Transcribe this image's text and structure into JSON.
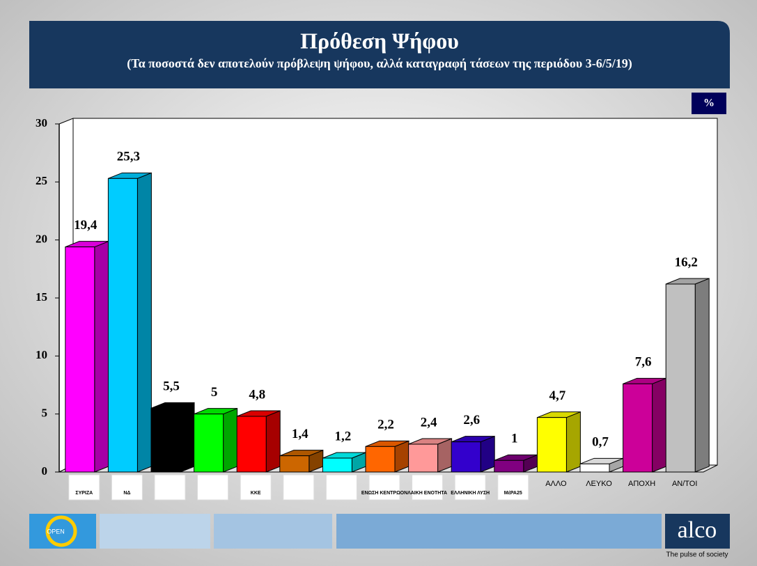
{
  "header": {
    "title": "Πρόθεση Ψήφου",
    "subtitle": "(Τα ποσοστά δεν αποτελούν πρόβλεψη ψήφου, αλλά καταγραφή τάσεων της περιόδου 3-6/5/19)",
    "unit": "%"
  },
  "chart_data": {
    "type": "bar3d",
    "categories": [
      "ΣΥΡΙΖΑ",
      "ΝΔ",
      null,
      null,
      "ΚΚΕ",
      null,
      null,
      "ΕΝΩΣΗ ΚΕΝΤΡΩΟΝ",
      "ΛΑΙΚΗ ΕΝΟΤΗΤΑ",
      "ΕΛΛΗΝΙΚΗ ΛΥΣΗ",
      "ΜέΡΑ25",
      "ΑΛΛΟ",
      "ΛΕΥΚΟ",
      "ΑΠΟΧΗ",
      "ΑΝ/ΤΟΙ"
    ],
    "values": [
      19.4,
      25.3,
      5.5,
      5,
      4.8,
      1.4,
      1.2,
      2.2,
      2.4,
      2.6,
      1,
      4.7,
      0.7,
      7.6,
      16.2
    ],
    "value_labels": [
      "19,4",
      "25,3",
      "5,5",
      "5",
      "4,8",
      "1,4",
      "1,2",
      "2,2",
      "2,4",
      "2,6",
      "1",
      "4,7",
      "0,7",
      "7,6",
      "16,2"
    ],
    "colors": [
      "#ff00ff",
      "#00ccff",
      "#000000",
      "#00ff00",
      "#ff0000",
      "#cc6600",
      "#00ffff",
      "#ff6600",
      "#ff9999",
      "#3300cc",
      "#800080",
      "#ffff00",
      "#ffffff",
      "#cc0099",
      "#c0c0c0"
    ],
    "ylim": [
      0,
      30
    ],
    "yticks": [
      0,
      5,
      10,
      15,
      20,
      25,
      30
    ]
  },
  "footer": {
    "brand": "alco",
    "tagline": "The pulse of society",
    "channel": "OPEN"
  }
}
